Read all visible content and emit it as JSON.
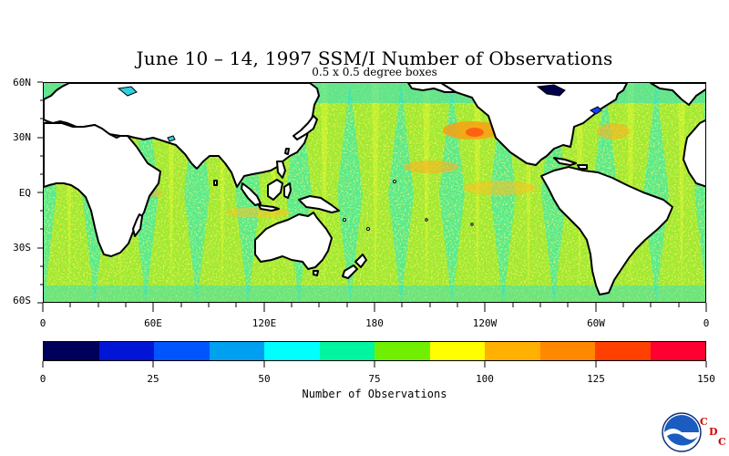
{
  "title": "June 10 – 14, 1997 SSM/I Number of Observations",
  "subtitle": "0.5 x 0.5 degree boxes",
  "map": {
    "lat_labels": [
      "60N",
      "30N",
      "EQ",
      "30S",
      "60S"
    ],
    "lon_labels": [
      "0",
      "60E",
      "120E",
      "180",
      "120W",
      "60W",
      "0"
    ],
    "land_color": "#ffffff",
    "coastline_color": "#000000"
  },
  "colorbar": {
    "title": "Number of Observations",
    "tick_labels": [
      "0",
      "25",
      "50",
      "75",
      "100",
      "125",
      "150"
    ],
    "colors": [
      "#00005a",
      "#0015d6",
      "#0055ff",
      "#00a0f0",
      "#00ffff",
      "#00f5a0",
      "#70f000",
      "#ffff00",
      "#ffb000",
      "#ff8800",
      "#ff4000",
      "#ff0030"
    ]
  },
  "logo": {
    "name": "NOAA",
    "letters": [
      "C",
      "D",
      "C"
    ]
  }
}
